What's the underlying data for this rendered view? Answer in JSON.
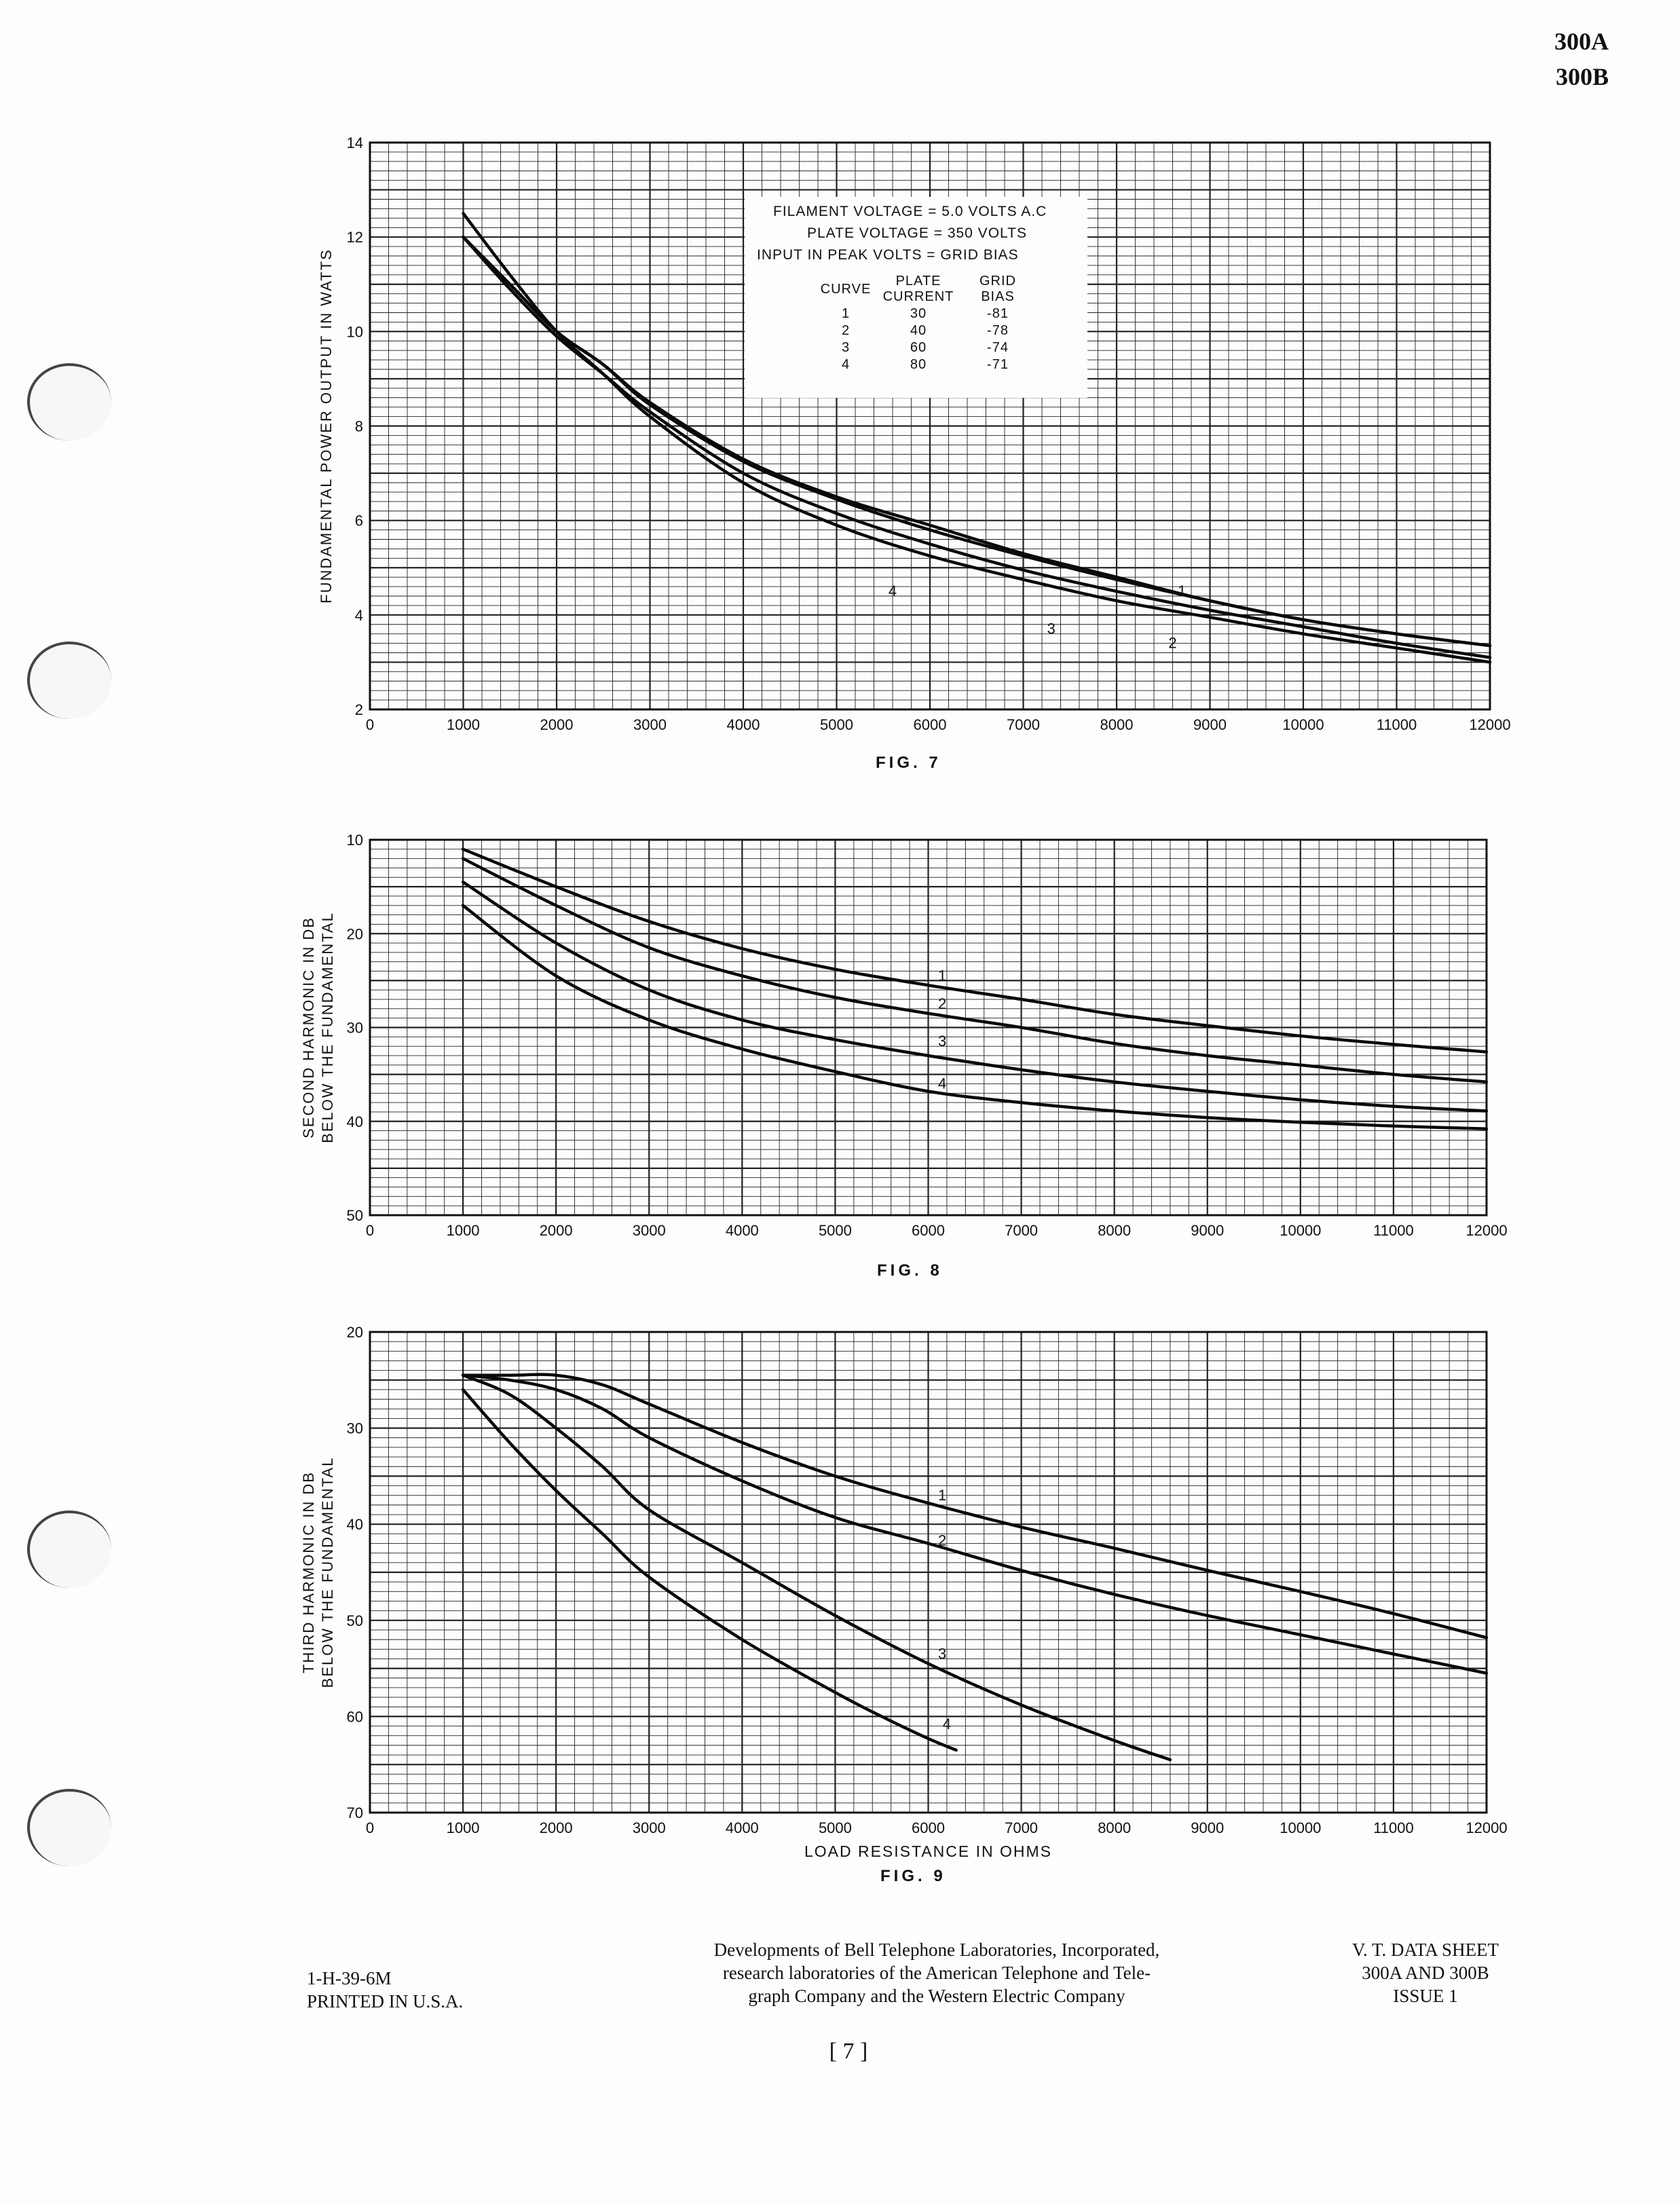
{
  "header": {
    "type_line1": "300A",
    "type_line2": "300B"
  },
  "legend": {
    "line1": "FILAMENT  VOLTAGE = 5.0 VOLTS  A.C",
    "line2": "PLATE  VOLTAGE = 350  VOLTS",
    "line3": "INPUT  IN  PEAK  VOLTS = GRID  BIAS",
    "col_headers": [
      [
        "",
        "CURVE"
      ],
      [
        "PLATE",
        "CURRENT"
      ],
      [
        "GRID",
        "BIAS"
      ]
    ],
    "rows": [
      [
        "1",
        "30",
        "-81"
      ],
      [
        "2",
        "40",
        "-78"
      ],
      [
        "3",
        "60",
        "-74"
      ],
      [
        "4",
        "80",
        "-71"
      ]
    ]
  },
  "footer": {
    "code": "1-H-39-6M",
    "printed": "PRINTED IN U.S.A.",
    "credit_line1": "Developments of Bell Telephone Laboratories, Incorporated,",
    "credit_line2": "research laboratories of the American Telephone and Tele-",
    "credit_line3": "graph Company and the Western Electric Company",
    "sheet_line1": "V. T. DATA SHEET",
    "sheet_line2": "300A AND 300B",
    "sheet_line3": "ISSUE 1",
    "page": "[ 7 ]"
  },
  "chart_data": [
    {
      "type": "line",
      "figure": "FIG. 7",
      "xlabel": "",
      "ylabel": "FUNDAMENTAL POWER OUTPUT IN WATTS",
      "xlim": [
        0,
        12000
      ],
      "ylim": [
        2,
        14
      ],
      "xticks": [
        0,
        1000,
        2000,
        3000,
        4000,
        5000,
        6000,
        7000,
        8000,
        9000,
        10000,
        11000,
        12000
      ],
      "yticks": [
        2,
        4,
        6,
        8,
        10,
        12,
        14
      ],
      "invert_y": false,
      "grid": true,
      "series": [
        {
          "name": "1",
          "x": [
            1000,
            1500,
            2000,
            2500,
            3000,
            4000,
            5000,
            6000,
            7000,
            8000,
            9000,
            10000,
            11000,
            12000
          ],
          "y": [
            12.0,
            11.0,
            10.0,
            9.3,
            8.5,
            7.3,
            6.5,
            5.9,
            5.3,
            4.8,
            4.3,
            3.9,
            3.6,
            3.35
          ]
        },
        {
          "name": "2",
          "x": [
            1000,
            1500,
            2000,
            2500,
            3000,
            4000,
            5000,
            6000,
            7000,
            8000,
            9000,
            10000,
            11000,
            12000
          ],
          "y": [
            12.0,
            11.0,
            10.0,
            9.3,
            8.45,
            7.25,
            6.45,
            5.8,
            5.25,
            4.75,
            4.3,
            3.9,
            3.6,
            3.35
          ]
        },
        {
          "name": "3",
          "x": [
            1000,
            1500,
            2000,
            2500,
            3000,
            4000,
            5000,
            6000,
            7000,
            8000,
            9000,
            10000,
            11000,
            12000
          ],
          "y": [
            12.0,
            10.9,
            9.9,
            9.1,
            8.3,
            7.0,
            6.15,
            5.5,
            4.95,
            4.5,
            4.1,
            3.75,
            3.4,
            3.1
          ]
        },
        {
          "name": "4",
          "x": [
            1000,
            1500,
            2000,
            2500,
            3000,
            4000,
            5000,
            6000,
            7000,
            8000,
            9000,
            10000,
            11000,
            12000
          ],
          "y": [
            12.5,
            11.2,
            10.0,
            9.1,
            8.2,
            6.8,
            5.9,
            5.25,
            4.75,
            4.3,
            3.95,
            3.6,
            3.3,
            3.0
          ]
        }
      ]
    },
    {
      "type": "line",
      "figure": "FIG. 8",
      "xlabel": "",
      "ylabel": "SECOND HARMONIC IN DB BELOW THE FUNDAMENTAL",
      "xlim": [
        0,
        12000
      ],
      "ylim": [
        10,
        50
      ],
      "xticks": [
        0,
        1000,
        2000,
        3000,
        4000,
        5000,
        6000,
        7000,
        8000,
        9000,
        10000,
        11000,
        12000
      ],
      "yticks": [
        10,
        20,
        30,
        40,
        50
      ],
      "invert_y": true,
      "grid": true,
      "series": [
        {
          "name": "1",
          "x": [
            1000,
            2000,
            3000,
            4000,
            5000,
            6000,
            7000,
            8000,
            9000,
            10000,
            11000,
            12000
          ],
          "y": [
            11,
            15,
            18.7,
            21.6,
            23.8,
            25.5,
            27.0,
            28.6,
            29.8,
            30.9,
            31.8,
            32.6
          ]
        },
        {
          "name": "2",
          "x": [
            1000,
            2000,
            3000,
            4000,
            5000,
            6000,
            7000,
            8000,
            9000,
            10000,
            11000,
            12000
          ],
          "y": [
            12,
            17,
            21.5,
            24.5,
            26.8,
            28.5,
            30.0,
            31.7,
            33.0,
            34.0,
            35.0,
            35.8
          ]
        },
        {
          "name": "3",
          "x": [
            1000,
            2000,
            3000,
            4000,
            5000,
            6000,
            7000,
            8000,
            9000,
            10000,
            11000,
            12000
          ],
          "y": [
            14.5,
            21,
            26,
            29.2,
            31.3,
            33.0,
            34.5,
            35.8,
            36.8,
            37.7,
            38.4,
            38.9
          ]
        },
        {
          "name": "4",
          "x": [
            1000,
            2000,
            3000,
            4000,
            5000,
            6000,
            7000,
            8000,
            9000,
            10000,
            11000,
            12000
          ],
          "y": [
            17,
            24.5,
            29.2,
            32.3,
            34.7,
            36.8,
            38.0,
            38.9,
            39.6,
            40.1,
            40.5,
            40.8
          ]
        }
      ]
    },
    {
      "type": "line",
      "figure": "FIG. 9",
      "xlabel": "LOAD RESISTANCE IN OHMS",
      "ylabel": "THIRD HARMONIC IN DB BELOW THE FUNDAMENTAL",
      "xlim": [
        0,
        12000
      ],
      "ylim": [
        20,
        70
      ],
      "xticks": [
        0,
        1000,
        2000,
        3000,
        4000,
        5000,
        6000,
        7000,
        8000,
        9000,
        10000,
        11000,
        12000
      ],
      "yticks": [
        20,
        30,
        40,
        50,
        60,
        70
      ],
      "invert_y": true,
      "grid": true,
      "series": [
        {
          "name": "1",
          "x": [
            1000,
            1500,
            2000,
            2500,
            3000,
            4000,
            5000,
            6000,
            7000,
            8000,
            9000,
            10000,
            11000,
            12000
          ],
          "y": [
            24.5,
            24.5,
            24.5,
            25.5,
            27.5,
            31.5,
            35.0,
            37.8,
            40.3,
            42.5,
            44.8,
            47.0,
            49.3,
            51.8
          ]
        },
        {
          "name": "2",
          "x": [
            1000,
            1500,
            2000,
            2500,
            3000,
            4000,
            5000,
            6000,
            7000,
            8000,
            9000,
            10000,
            11000,
            12000
          ],
          "y": [
            24.5,
            25.0,
            26.0,
            28.0,
            31.0,
            35.5,
            39.3,
            42.0,
            44.8,
            47.3,
            49.5,
            51.5,
            53.5,
            55.5
          ]
        },
        {
          "name": "3",
          "x": [
            1000,
            1500,
            2000,
            2500,
            3000,
            4000,
            5000,
            6000,
            7000,
            8000,
            8600
          ],
          "y": [
            24.5,
            26.5,
            30.0,
            34.0,
            38.5,
            44.0,
            49.5,
            54.5,
            58.8,
            62.5,
            64.5
          ]
        },
        {
          "name": "4",
          "x": [
            1000,
            1500,
            2000,
            2500,
            3000,
            4000,
            5000,
            5500,
            6000,
            6300
          ],
          "y": [
            26.0,
            31.5,
            36.5,
            41.0,
            45.5,
            52.0,
            57.5,
            60.0,
            62.3,
            63.5
          ]
        }
      ]
    }
  ]
}
